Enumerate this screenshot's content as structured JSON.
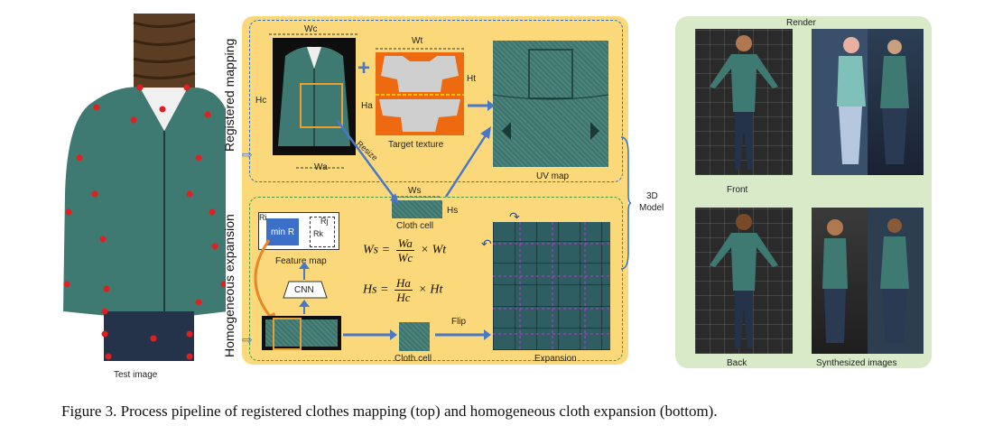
{
  "labels": {
    "test_image": "Test image",
    "registered_mapping": "Registered mapping",
    "homogeneous_expansion": "Homogeneous expansion",
    "wc": "Wc",
    "hc": "Hc",
    "wa": "Wa",
    "ha": "Ha",
    "wt": "Wt",
    "ht": "Ht",
    "ws": "Ws",
    "hs": "Hs",
    "resize": "Resize",
    "target_texture": "Target texture",
    "uv_map": "UV map",
    "cloth_cell_top": "Cloth cell",
    "cloth_cell_bottom": "Cloth cell",
    "feature_map": "Feature map",
    "min_r": "min R",
    "r_i": "Ri",
    "r_j": "Rj",
    "r_k": "Rk",
    "cnn": "CNN",
    "flip": "Flip",
    "expansion": "Expansion",
    "model_3d": "3D",
    "model_3d_2": "Model",
    "render": "Render",
    "front": "Front",
    "back": "Back",
    "synthesized_images": "Synthesized images",
    "plus": "+"
  },
  "equations": {
    "ws_lhs": "Ws =",
    "ws_num": "Wa",
    "ws_den": "Wc",
    "ws_rhs": "× Wt",
    "hs_lhs": "Hs =",
    "hs_num": "Ha",
    "hs_den": "Hc",
    "hs_rhs": "× Ht"
  },
  "caption": "Figure 3. Process pipeline of registered clothes mapping (top) and homogeneous cloth expansion (bottom).",
  "colors": {
    "panel_orange": "#fbd97a",
    "panel_green": "#d8eac8",
    "arrow_blue": "#4a78c8",
    "keypoint_red": "#e02020",
    "orange_arrow": "#e8862a"
  }
}
